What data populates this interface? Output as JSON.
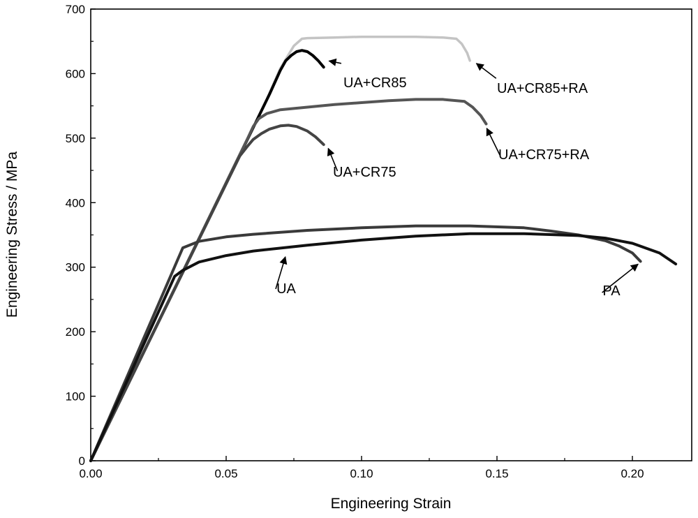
{
  "chart_data": {
    "type": "line",
    "title": "",
    "xlabel": "Engineering Strain",
    "ylabel": "Engineering Stress / MPa",
    "xlim": [
      0.0,
      0.222
    ],
    "ylim": [
      0,
      700
    ],
    "x_ticks": [
      0.0,
      0.05,
      0.1,
      0.15,
      0.2
    ],
    "x_tick_labels": [
      "0.00",
      "0.05",
      "0.10",
      "0.15",
      "0.20"
    ],
    "y_ticks": [
      0,
      100,
      200,
      300,
      400,
      500,
      600,
      700
    ],
    "y_tick_labels": [
      "0",
      "100",
      "200",
      "300",
      "400",
      "500",
      "600",
      "700"
    ],
    "grid": false,
    "legend": "none",
    "series": [
      {
        "name": "UA+CR85+RA",
        "color": "#c4c4c4",
        "x": [
          0.0,
          0.065,
          0.07,
          0.075,
          0.078,
          0.08,
          0.09,
          0.1,
          0.11,
          0.12,
          0.13,
          0.135,
          0.137,
          0.139,
          0.14
        ],
        "y": [
          0,
          560,
          608,
          643,
          654,
          655,
          656,
          657,
          657,
          657,
          656,
          654,
          646,
          632,
          620
        ]
      },
      {
        "name": "UA+CR85",
        "color": "#000000",
        "x": [
          0.0,
          0.066,
          0.07,
          0.072,
          0.074,
          0.076,
          0.078,
          0.08,
          0.082,
          0.084,
          0.086
        ],
        "y": [
          0,
          568,
          605,
          620,
          628,
          634,
          636,
          634,
          628,
          620,
          610
        ]
      },
      {
        "name": "UA+CR75+RA",
        "color": "#555555",
        "x": [
          0.0,
          0.058,
          0.06,
          0.062,
          0.065,
          0.07,
          0.08,
          0.09,
          0.1,
          0.11,
          0.12,
          0.13,
          0.138,
          0.141,
          0.144,
          0.146
        ],
        "y": [
          0,
          500,
          518,
          530,
          538,
          544,
          548,
          552,
          555,
          558,
          560,
          560,
          557,
          548,
          535,
          522
        ]
      },
      {
        "name": "UA+CR75",
        "color": "#444444",
        "x": [
          0.0,
          0.055,
          0.058,
          0.06,
          0.063,
          0.066,
          0.07,
          0.073,
          0.076,
          0.08,
          0.083,
          0.086
        ],
        "y": [
          0,
          472,
          488,
          498,
          507,
          514,
          519,
          520,
          518,
          511,
          502,
          490
        ]
      },
      {
        "name": "PA",
        "color": "#3a3a3a",
        "x": [
          0.0,
          0.034,
          0.04,
          0.05,
          0.06,
          0.08,
          0.1,
          0.12,
          0.14,
          0.16,
          0.17,
          0.18,
          0.19,
          0.195,
          0.2,
          0.203
        ],
        "y": [
          0,
          330,
          340,
          347,
          351,
          357,
          361,
          364,
          364,
          361,
          356,
          350,
          341,
          333,
          322,
          309
        ]
      },
      {
        "name": "UA",
        "color": "#111111",
        "x": [
          0.0,
          0.031,
          0.034,
          0.04,
          0.05,
          0.06,
          0.08,
          0.1,
          0.12,
          0.14,
          0.16,
          0.18,
          0.19,
          0.2,
          0.21,
          0.216
        ],
        "y": [
          0,
          286,
          295,
          308,
          318,
          325,
          334,
          342,
          348,
          352,
          352,
          349,
          345,
          337,
          322,
          305
        ]
      }
    ],
    "annotations": [
      {
        "text": "UA+CR85",
        "x": 0.0935,
        "y": 615,
        "arrow_to": [
          0.0875,
          620
        ]
      },
      {
        "text": "UA+CR85+RA",
        "x": 0.1505,
        "y": 590,
        "arrow_to": [
          0.142,
          617
        ]
      },
      {
        "text": "UA+CR75+RA",
        "x": 0.1515,
        "y": 470,
        "arrow_to": [
          0.146,
          517
        ]
      },
      {
        "text": "UA+CR75",
        "x": 0.0915,
        "y": 445,
        "arrow_to": [
          0.0875,
          486
        ]
      },
      {
        "text": "UA",
        "x": 0.068,
        "y": 262,
        "arrow_to": [
          0.072,
          318
        ]
      },
      {
        "text": "PA",
        "x": 0.188,
        "y": 258,
        "arrow_to": [
          0.2025,
          306
        ]
      }
    ]
  }
}
